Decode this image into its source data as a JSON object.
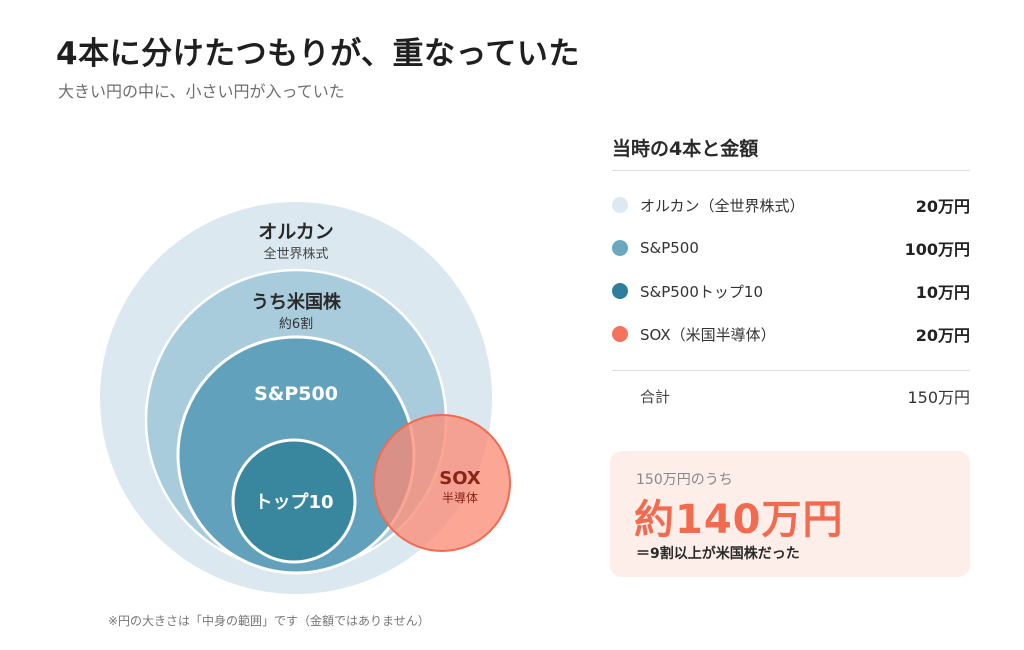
{
  "title": "4本に分けたつもりが、重なっていた",
  "subtitle": "大きい円の中に、小さい円が入っていた",
  "diagram": {
    "all_world": {
      "label": "オルカン",
      "sub": "全世界株式"
    },
    "us": {
      "label": "うち米国株",
      "sub": "約6割"
    },
    "sp500": {
      "label": "S&P500"
    },
    "top10": {
      "label": "トップ10"
    },
    "sox": {
      "label": "SOX",
      "sub": "半導体"
    }
  },
  "note": "※円の大きさは「中身の範囲」です（金額ではありません）",
  "legend": {
    "title": "当時の4本と金額",
    "items": [
      {
        "label": "オルカン（全世界株式）",
        "amount": "20万円",
        "color": "#dce9f1"
      },
      {
        "label": "S&P500",
        "amount": "100万円",
        "color": "#6ba8c0"
      },
      {
        "label": "S&P500トップ10",
        "amount": "10万円",
        "color": "#2e7f9c"
      },
      {
        "label": "SOX（米国半導体）",
        "amount": "20万円",
        "color": "#f4735a"
      }
    ],
    "total": {
      "label": "合計",
      "amount": "150万円"
    }
  },
  "highlight": {
    "small": "150万円のうち",
    "big": "約140万円",
    "sub": "＝9割以上が米国株だった"
  },
  "colors": {
    "all_world": "#dbe8f0",
    "us": "#a9ccdc",
    "sp500": "#62a1bb",
    "top10": "#38879f",
    "sox": "#fb8d78",
    "accent": "#f26b4f"
  }
}
